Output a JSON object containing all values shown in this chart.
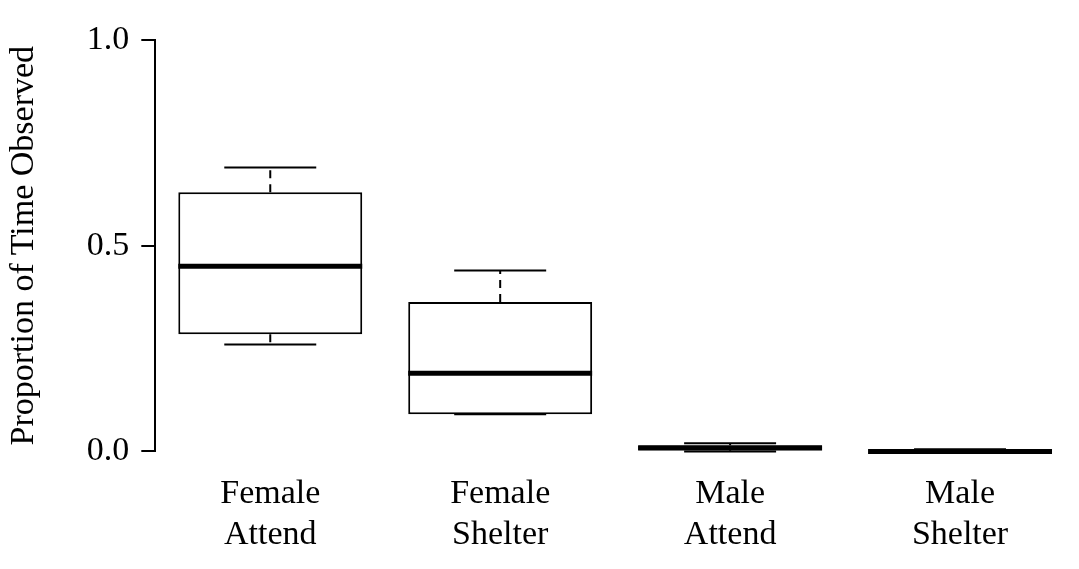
{
  "chart_data": {
    "type": "box",
    "ylabel": "Proportion of Time Observed",
    "categories": [
      "Female Attend",
      "Female Shelter",
      "Male Attend",
      "Male Shelter"
    ],
    "boxes": [
      {
        "low": 0.26,
        "q1": 0.285,
        "median": 0.45,
        "q3": 0.63,
        "high": 0.69
      },
      {
        "low": 0.09,
        "q1": 0.09,
        "median": 0.19,
        "q3": 0.363,
        "high": 0.44
      },
      {
        "low": 0,
        "q1": 0.003,
        "median": 0.008,
        "q3": 0.015,
        "high": 0.02
      },
      {
        "low": 0,
        "q1": 0,
        "median": 0,
        "q3": 0.003,
        "high": 0.005
      }
    ],
    "color": "#000000",
    "ylim": [
      0,
      1
    ],
    "yticks": [
      {
        "value": 0,
        "label": "0.0"
      },
      {
        "value": 0.5,
        "label": "0.5"
      },
      {
        "value": 1,
        "label": "1.0"
      }
    ]
  }
}
